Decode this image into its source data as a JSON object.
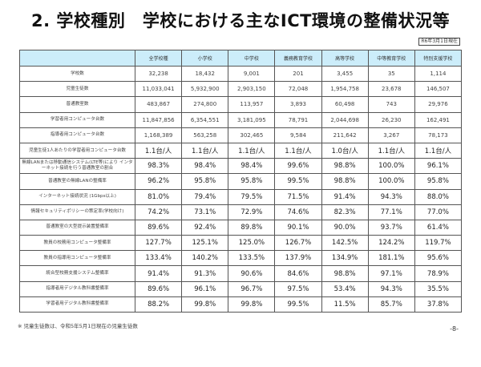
{
  "title": "2. 学校種別　学校における主なICT環境の整備状況等",
  "as_of": "R6年3月1日現在",
  "table": {
    "columns": [
      "",
      "全学校種",
      "小学校",
      "中学校",
      "義務教育学校",
      "高等学校",
      "中等教育学校",
      "特別支援学校"
    ],
    "rows": [
      {
        "label": "学校数",
        "values": [
          "32,238",
          "18,432",
          "9,001",
          "201",
          "3,455",
          "35",
          "1,114"
        ]
      },
      {
        "label": "児童生徒数",
        "values": [
          "11,033,041",
          "5,932,900",
          "2,903,150",
          "72,048",
          "1,954,758",
          "23,678",
          "146,507"
        ]
      },
      {
        "label": "普通教室数",
        "values": [
          "483,867",
          "274,800",
          "113,957",
          "3,893",
          "60,498",
          "743",
          "29,976"
        ]
      },
      {
        "label": "学習者用コンピュータ台数",
        "values": [
          "11,847,856",
          "6,354,551",
          "3,181,095",
          "78,791",
          "2,044,698",
          "26,230",
          "162,491"
        ]
      },
      {
        "label": "指導者用コンピュータ台数",
        "values": [
          "1,168,389",
          "563,258",
          "302,465",
          "9,584",
          "211,642",
          "3,267",
          "78,173"
        ]
      },
      {
        "label": "児童生徒1人あたりの学習者用コンピュータ台数",
        "values": [
          "1.1台/人",
          "1.1台/人",
          "1.1台/人",
          "1.1台/人",
          "1.0台/人",
          "1.1台/人",
          "1.1台/人"
        ]
      },
      {
        "label": "無線LANまたは移動通信システム(LTE等)により インターネット接続を行う普通教室の割合",
        "values": [
          "98.3%",
          "98.4%",
          "98.4%",
          "99.6%",
          "98.8%",
          "100.0%",
          "96.1%"
        ]
      },
      {
        "label": "普通教室の無線LANの整備率",
        "values": [
          "96.2%",
          "95.8%",
          "95.8%",
          "99.5%",
          "98.8%",
          "100.0%",
          "95.8%"
        ]
      },
      {
        "label": "インターネット接続状況 (1Gbps以上)",
        "values": [
          "81.0%",
          "79.4%",
          "79.5%",
          "71.5%",
          "91.4%",
          "94.3%",
          "88.0%"
        ]
      },
      {
        "label": "情報セキュリティポリシーの策定率(学校向け)",
        "values": [
          "74.2%",
          "73.1%",
          "72.9%",
          "74.6%",
          "82.3%",
          "77.1%",
          "77.0%"
        ]
      },
      {
        "label": "普通教室の大型提示装置整備率",
        "values": [
          "89.6%",
          "92.4%",
          "89.8%",
          "90.1%",
          "90.0%",
          "93.7%",
          "61.4%"
        ]
      },
      {
        "label": "教員の校務用コンピュータ整備率",
        "values": [
          "127.7%",
          "125.1%",
          "125.0%",
          "126.7%",
          "142.5%",
          "124.2%",
          "119.7%"
        ]
      },
      {
        "label": "教員の指導用コンピュータ整備率",
        "values": [
          "133.4%",
          "140.2%",
          "133.5%",
          "137.9%",
          "134.9%",
          "181.1%",
          "95.6%"
        ]
      },
      {
        "label": "統合型校務支援システム整備率",
        "values": [
          "91.4%",
          "91.3%",
          "90.6%",
          "84.6%",
          "98.8%",
          "97.1%",
          "78.9%"
        ]
      },
      {
        "label": "指導者用デジタル教科書整備率",
        "values": [
          "89.6%",
          "96.1%",
          "96.7%",
          "97.5%",
          "53.4%",
          "94.3%",
          "35.5%"
        ]
      },
      {
        "label": "学習者用デジタル教科書整備率",
        "values": [
          "88.2%",
          "99.8%",
          "99.8%",
          "99.5%",
          "11.5%",
          "85.7%",
          "37.8%"
        ]
      }
    ]
  },
  "footnote": "※ 児童生徒数は、令和5年5月1日現在の児童生徒数",
  "page_number": "-8-"
}
